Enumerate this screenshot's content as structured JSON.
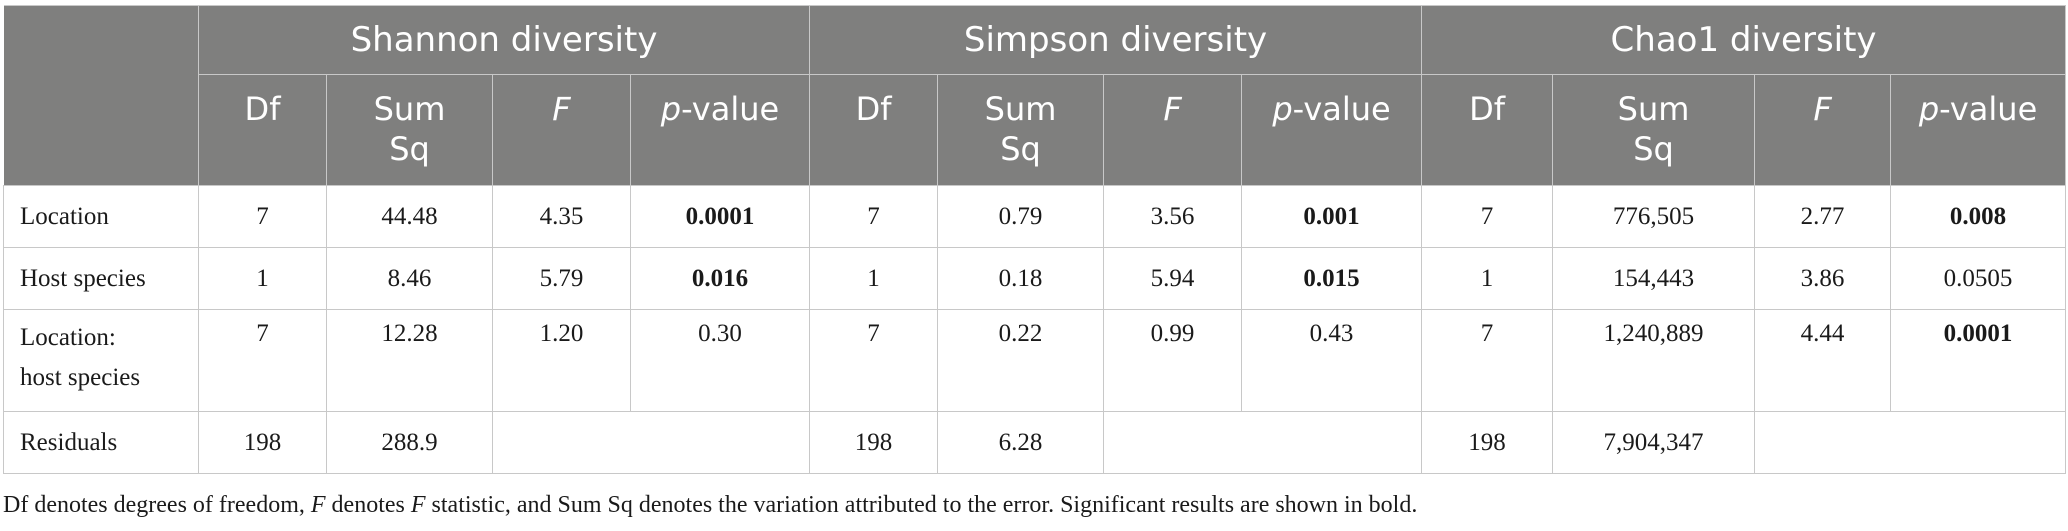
{
  "groups": [
    "Shannon diversity",
    "Simpson diversity",
    "Chao1 diversity"
  ],
  "columns": {
    "df": "Df",
    "sumsq_line1": "Sum",
    "sumsq_line2": "Sq",
    "f": "F",
    "p_prefix": "p",
    "p_suffix": "-value"
  },
  "rows": [
    {
      "label_line1": "Location",
      "label_line2": "",
      "shannon": {
        "df": "7",
        "sumsq": "44.48",
        "f": "4.35",
        "p": "0.0001"
      },
      "simpson": {
        "df": "7",
        "sumsq": "0.79",
        "f": "3.56",
        "p": "0.001"
      },
      "chao1": {
        "df": "7",
        "sumsq": "776,505",
        "f": "2.77",
        "p": "0.008"
      }
    },
    {
      "label_line1": "Host species",
      "label_line2": "",
      "shannon": {
        "df": "1",
        "sumsq": "8.46",
        "f": "5.79",
        "p": "0.016"
      },
      "simpson": {
        "df": "1",
        "sumsq": "0.18",
        "f": "5.94",
        "p": "0.015"
      },
      "chao1": {
        "df": "1",
        "sumsq": "154,443",
        "f": "3.86",
        "p": "0.0505"
      }
    },
    {
      "label_line1": "Location:",
      "label_line2": "host species",
      "shannon": {
        "df": "7",
        "sumsq": "12.28",
        "f": "1.20",
        "p": "0.30"
      },
      "simpson": {
        "df": "7",
        "sumsq": "0.22",
        "f": "0.99",
        "p": "0.43"
      },
      "chao1": {
        "df": "7",
        "sumsq": "1,240,889",
        "f": "4.44",
        "p": "0.0001"
      }
    },
    {
      "label_line1": "Residuals",
      "label_line2": "",
      "shannon": {
        "df": "198",
        "sumsq": "288.9"
      },
      "simpson": {
        "df": "198",
        "sumsq": "6.28"
      },
      "chao1": {
        "df": "198",
        "sumsq": "7,904,347"
      }
    }
  ],
  "footnote": {
    "part1": "Df denotes degrees of freedom, ",
    "f1": "F",
    "part2": " denotes ",
    "f2": "F",
    "part3": " statistic, and Sum Sq denotes the variation attributed to the error. Significant results are shown in bold."
  }
}
